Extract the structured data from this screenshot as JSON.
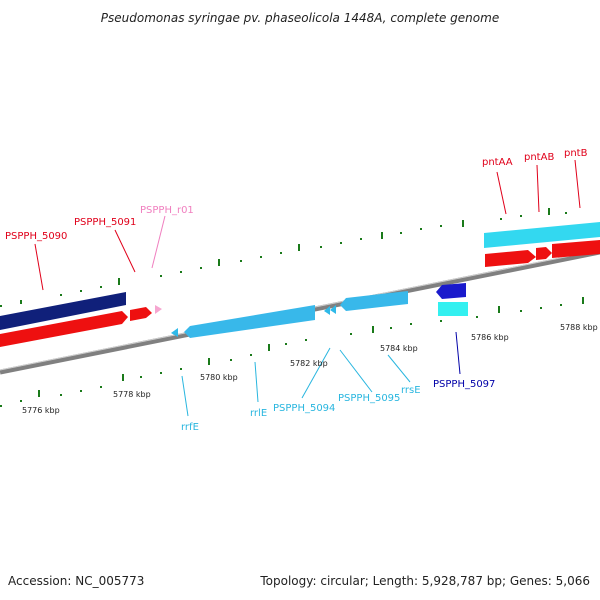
{
  "title": "Pseudomonas syringae pv. phaseolicola 1448A, complete genome",
  "footer": {
    "accession": "Accession: NC_005773",
    "summary": "Topology: circular; Length: 5,928,787 bp; Genes: 5,066"
  },
  "colors": {
    "gene_label_red": "#e0001a",
    "gene_label_pink": "#f07fbf",
    "gene_label_cyan": "#29b6df",
    "gene_label_navy": "#0000a8",
    "tick_green": "#1a7a1a",
    "backbone": "#808080"
  },
  "scale_labels": [
    "5776 kbp",
    "5778 kbp",
    "5780 kbp",
    "5782 kbp",
    "5784 kbp",
    "5786 kbp",
    "5788 kbp"
  ],
  "features": {
    "outer_genes": [
      "pntAA",
      "pntAB",
      "pntB"
    ],
    "upper_genes": [
      "PSPPH_5090",
      "PSPPH_5091",
      "PSPPH_r01"
    ],
    "lower_genes": [
      "rrfE",
      "rrlE",
      "PSPPH_5094",
      "PSPPH_5095",
      "rrsE",
      "PSPPH_5097"
    ]
  }
}
